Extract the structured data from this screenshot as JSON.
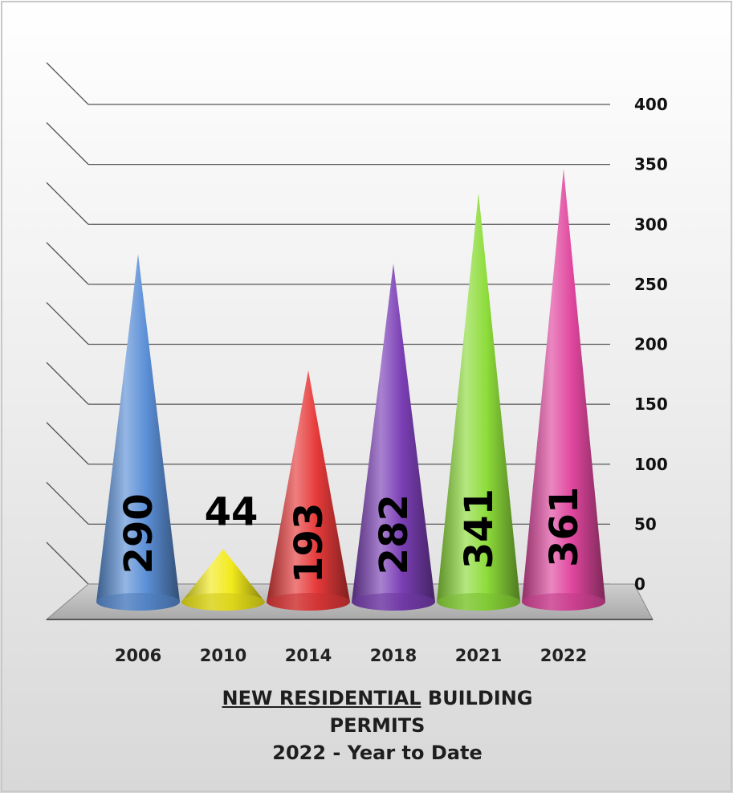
{
  "chart_data": {
    "type": "bar",
    "bar_shape": "cone",
    "categories": [
      "2006",
      "2010",
      "2014",
      "2018",
      "2021",
      "2022"
    ],
    "values": [
      290,
      44,
      193,
      282,
      341,
      361
    ],
    "data_labels": [
      "290",
      "44",
      "193",
      "282",
      "341",
      "361"
    ],
    "title": {
      "underlined": "NEW RESIDENTIAL",
      "line1_rest": " BUILDING",
      "line2": "PERMITS",
      "line3": "2022 - Year to Date"
    },
    "ylim": [
      0,
      400
    ],
    "yticks": [
      "0",
      "50",
      "100",
      "150",
      "200",
      "250",
      "300",
      "350",
      "400"
    ],
    "y_axis_position": "right",
    "grid": true,
    "legend": "none",
    "colors": [
      "#5b8fd6",
      "#f2ea1c",
      "#e63a3a",
      "#7b3fb5",
      "#8ddc3a",
      "#e0479e"
    ]
  }
}
